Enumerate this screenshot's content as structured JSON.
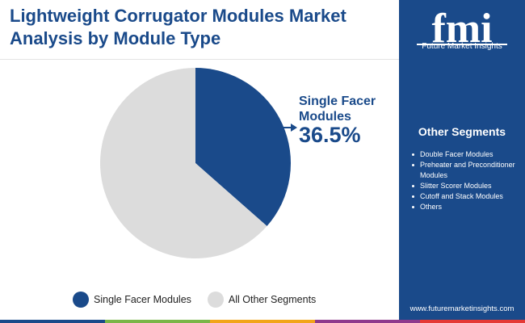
{
  "header": {
    "title_line1": "Lightweight Corrugator Modules Market",
    "title_line2": "Analysis by Module Type"
  },
  "brand": {
    "logo_text": "fmi",
    "name": "Future Market Insights",
    "url": "www.futuremarketinsights.com"
  },
  "sidebar": {
    "title": "Other Segments",
    "items": [
      "Double Facer Modules",
      "Preheater and Preconditioner Modules",
      "Slitter Scorer Modules",
      "Cutoff and Stack Modules",
      "Others"
    ]
  },
  "callout": {
    "label_line1": "Single Facer",
    "label_line2": "Modules",
    "value": "36.5%"
  },
  "chart_data": {
    "type": "pie",
    "slices": [
      {
        "label": "Single Facer Modules",
        "value": 36.5,
        "color": "#1a4a8a"
      },
      {
        "label": "All Other Segments",
        "value": 63.5,
        "color": "#dcdcdc"
      }
    ],
    "legend_position": "bottom"
  },
  "legend": {
    "items": [
      {
        "label": "Single Facer Modules",
        "color": "#1a4a8a"
      },
      {
        "label": "All Other Segments",
        "color": "#dcdcdc"
      }
    ]
  },
  "colors": {
    "primary": "#1a4a8a",
    "stripe": [
      "#1a4a8a",
      "#7ab648",
      "#f2a51a",
      "#8e3a8d",
      "#e53935"
    ]
  }
}
